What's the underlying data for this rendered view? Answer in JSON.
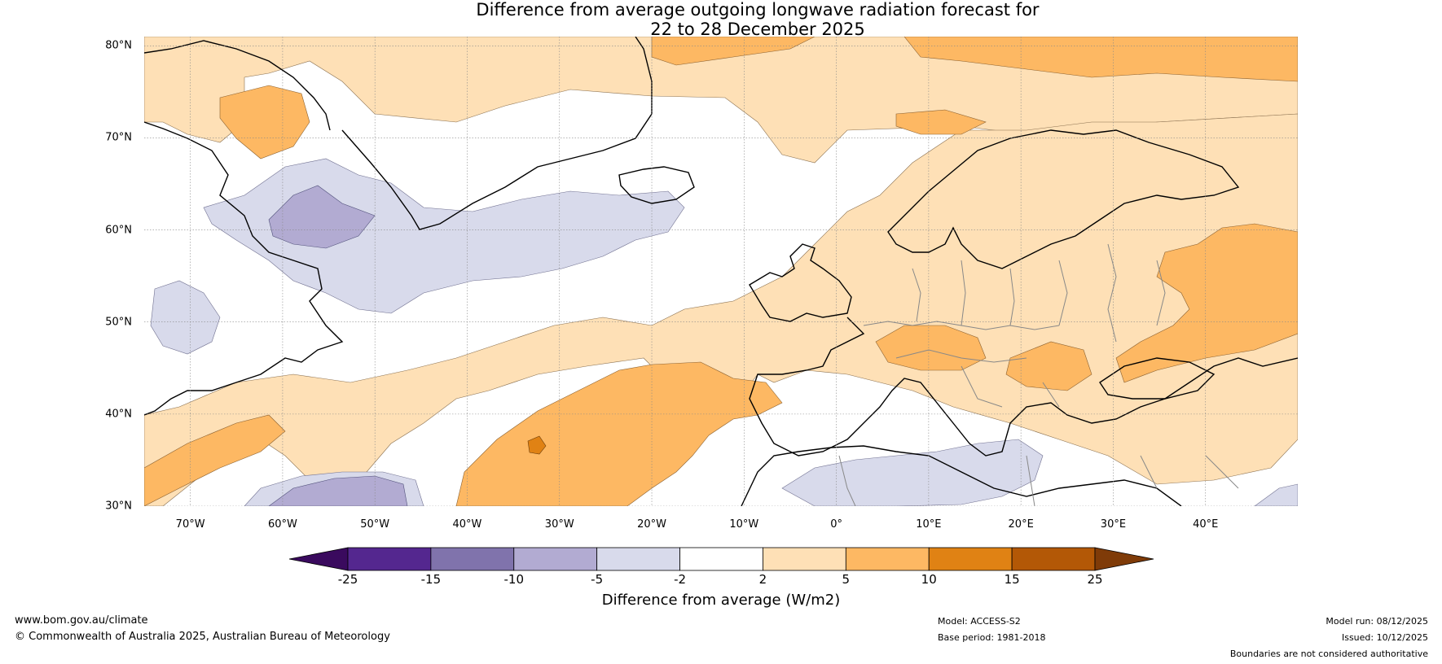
{
  "title": {
    "line1": "Difference from average outgoing longwave radiation forecast for",
    "line2": "22 to 28 December 2025"
  },
  "map": {
    "lon_range": [
      -75,
      50
    ],
    "lat_range": [
      30,
      81
    ],
    "lat_labels": [
      "30°N",
      "40°N",
      "50°N",
      "60°N",
      "70°N",
      "80°N"
    ],
    "lat_values": [
      30,
      40,
      50,
      60,
      70,
      80
    ],
    "lon_labels": [
      "70°W",
      "60°W",
      "50°W",
      "40°W",
      "30°W",
      "20°W",
      "10°W",
      "0°",
      "10°E",
      "20°E",
      "30°E",
      "40°E"
    ],
    "lon_values": [
      -70,
      -60,
      -50,
      -40,
      -30,
      -20,
      -10,
      0,
      10,
      20,
      30,
      40
    ]
  },
  "colorbar": {
    "ticks": [
      "-25",
      "-15",
      "-10",
      "-5",
      "-2",
      "2",
      "5",
      "10",
      "15",
      "25"
    ],
    "colors": [
      "#3a0a5e",
      "#54278f",
      "#8073ac",
      "#b2abd2",
      "#d8daeb",
      "#ffffff",
      "#fee0b6",
      "#fdb863",
      "#e08214",
      "#b35806",
      "#7f3b08"
    ],
    "label": "Difference from average (W/m2)"
  },
  "footer": {
    "website": "www.bom.gov.au/climate",
    "copyright": "© Commonwealth of Australia 2025, Australian Bureau of Meteorology",
    "model": "Model: ACCESS-S2",
    "base_period": "Base period: 1981-2018",
    "model_run": "Model run: 08/12/2025",
    "issued": "Issued: 10/12/2025",
    "disclaimer": "Boundaries are not considered authoritative"
  }
}
